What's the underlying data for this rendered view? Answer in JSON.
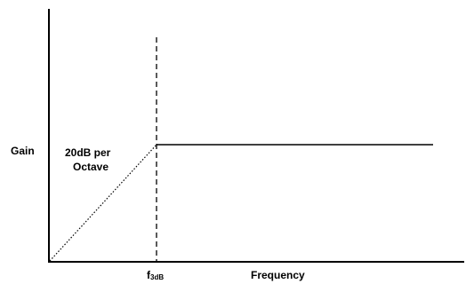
{
  "labels": {
    "y_axis": "Gain",
    "x_axis": "Frequency",
    "slope_line1": "20dB per",
    "slope_line2": "Octave",
    "cutoff_main": "f",
    "cutoff_sub": "3dB"
  },
  "colors": {
    "line": "#000000",
    "background": "#ffffff"
  }
}
